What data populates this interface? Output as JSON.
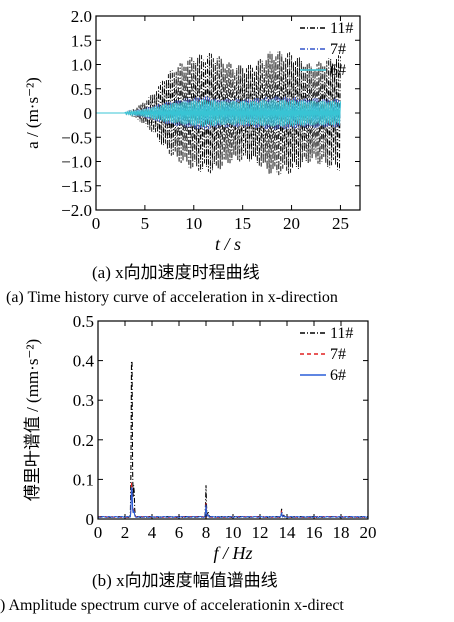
{
  "captions": {
    "a_cn": "(a)  x向加速度时程曲线",
    "a_en": "(a)  Time history curve of acceleration in x-direction",
    "b_cn": "(b)  x向加速度幅值谱曲线",
    "b_en": ")  Amplitude spectrum curve of accelerationin x-direct"
  },
  "chart_data": [
    {
      "type": "line",
      "xlabel": "t / s",
      "ylabel": "a / (m·s⁻²)",
      "xlim": [
        0,
        27
      ],
      "ylim": [
        -2.0,
        2.0
      ],
      "x_ticks": [
        "0",
        "5",
        "10",
        "15",
        "20",
        "25"
      ],
      "y_ticks": [
        "2.0",
        "1.5",
        "1.0",
        "0.5",
        "0",
        "−0.5",
        "−1.0",
        "−1.5",
        "−2.0"
      ],
      "grid": false,
      "legend": "top-right",
      "signal": {
        "t_start": 3.0,
        "t_end": 25.0,
        "sample_step": 0.1
      },
      "series": [
        {
          "name": "11#",
          "color": "#000000",
          "dash": "dashdot",
          "envelope": [
            [
              3,
              0.02
            ],
            [
              4,
              0.1
            ],
            [
              5,
              0.25
            ],
            [
              6,
              0.45
            ],
            [
              7,
              0.75
            ],
            [
              8,
              0.95
            ],
            [
              10,
              1.2
            ],
            [
              12,
              1.25
            ],
            [
              14,
              1.0
            ],
            [
              16,
              1.0
            ],
            [
              18,
              1.3
            ],
            [
              20,
              1.25
            ],
            [
              22,
              1.0
            ],
            [
              24,
              1.15
            ],
            [
              25,
              1.2
            ]
          ]
        },
        {
          "name": "7#",
          "color": "#3355cc",
          "dash": "dashdot",
          "envelope": [
            [
              3,
              0.02
            ],
            [
              5,
              0.1
            ],
            [
              7,
              0.22
            ],
            [
              9,
              0.3
            ],
            [
              11,
              0.35
            ],
            [
              13,
              0.3
            ],
            [
              16,
              0.3
            ],
            [
              18,
              0.35
            ],
            [
              21,
              0.32
            ],
            [
              24,
              0.3
            ],
            [
              25,
              0.3
            ]
          ]
        },
        {
          "name": "6#",
          "color": "#38c4d4",
          "dash": "solid",
          "envelope": [
            [
              3,
              0.02
            ],
            [
              5,
              0.08
            ],
            [
              7,
              0.18
            ],
            [
              9,
              0.24
            ],
            [
              11,
              0.28
            ],
            [
              13,
              0.25
            ],
            [
              16,
              0.25
            ],
            [
              18,
              0.28
            ],
            [
              21,
              0.26
            ],
            [
              24,
              0.25
            ],
            [
              25,
              0.25
            ]
          ]
        }
      ]
    },
    {
      "type": "line",
      "xlabel": "f / Hz",
      "ylabel": "傅里叶谱值 / (mm·s⁻²)",
      "xlim": [
        0,
        20
      ],
      "ylim": [
        0,
        0.5
      ],
      "x_ticks": [
        "0",
        "2",
        "4",
        "6",
        "8",
        "10",
        "12",
        "14",
        "16",
        "18",
        "20"
      ],
      "y_ticks": [
        "0.5",
        "0.4",
        "0.3",
        "0.2",
        "0.1",
        "0"
      ],
      "grid": false,
      "legend": "top-right",
      "series": [
        {
          "name": "11#",
          "color": "#000000",
          "dash": "dashdot",
          "peaks": [
            [
              2.5,
              0.46
            ],
            [
              8.0,
              0.08
            ],
            [
              13.6,
              0.02
            ]
          ]
        },
        {
          "name": "7#",
          "color": "#e02020",
          "dash": "dashed",
          "peaks": [
            [
              2.5,
              0.1
            ],
            [
              8.0,
              0.035
            ],
            [
              13.6,
              0.015
            ]
          ]
        },
        {
          "name": "6#",
          "color": "#2a5ed8",
          "dash": "solid",
          "peaks": [
            [
              2.5,
              0.085
            ],
            [
              8.0,
              0.03
            ],
            [
              13.6,
              0.012
            ]
          ]
        }
      ]
    }
  ]
}
